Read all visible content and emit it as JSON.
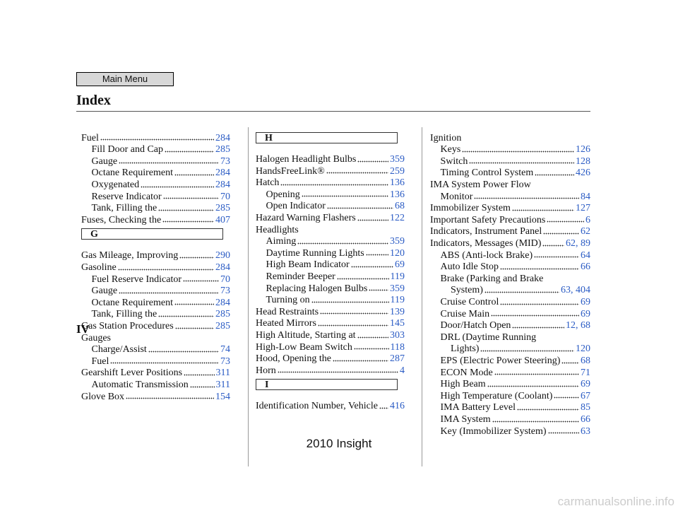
{
  "header": {
    "menu_button": "Main Menu",
    "title": "Index",
    "page_number": "IV"
  },
  "columns": [
    [
      {
        "term": "Fuel",
        "pages": "284",
        "subentries": [
          {
            "term": "Fill Door and Cap",
            "pages": "285"
          },
          {
            "term": "Gauge",
            "pages": "73"
          },
          {
            "term": "Octane Requirement",
            "pages": "284"
          },
          {
            "term": "Oxygenated",
            "pages": "284"
          },
          {
            "term": "Reserve Indicator",
            "pages": "70"
          },
          {
            "term": "Tank, Filling the",
            "pages": "285"
          }
        ]
      },
      {
        "term": "Fuses, Checking the",
        "pages": "407"
      },
      {
        "heading": "G"
      },
      {
        "term": "Gas Mileage, Improving",
        "pages": "290"
      },
      {
        "term": "Gasoline",
        "pages": "284",
        "subentries": [
          {
            "term": "Fuel Reserve Indicator",
            "pages": "70"
          },
          {
            "term": "Gauge",
            "pages": "73"
          },
          {
            "term": "Octane Requirement",
            "pages": "284"
          },
          {
            "term": "Tank, Filling the",
            "pages": "285"
          }
        ]
      },
      {
        "term": "Gas Station Procedures",
        "pages": "285"
      },
      {
        "term": "Gauges",
        "subentries": [
          {
            "term": "Charge/Assist",
            "pages": "74"
          },
          {
            "term": "Fuel",
            "pages": "73"
          }
        ]
      },
      {
        "term": "Gearshift Lever Positions",
        "pages": "311",
        "subentries": [
          {
            "term": "Automatic Transmission",
            "pages": "311"
          }
        ]
      },
      {
        "term": "Glove Box",
        "pages": "154"
      }
    ],
    [
      {
        "heading": "H"
      },
      {
        "term": "Halogen Headlight Bulbs",
        "pages": "359"
      },
      {
        "term": "HandsFreeLink®",
        "pages": "259"
      },
      {
        "term": "Hatch",
        "pages": "136",
        "subentries": [
          {
            "term": "Opening",
            "pages": "136"
          },
          {
            "term": "Open Indicator",
            "pages": "68"
          }
        ]
      },
      {
        "term": "Hazard Warning Flashers",
        "pages": "122"
      },
      {
        "term": "Headlights",
        "subentries": [
          {
            "term": "Aiming",
            "pages": "359"
          },
          {
            "term": "Daytime Running Lights",
            "pages": "120"
          },
          {
            "term": "High Beam Indicator",
            "pages": "69"
          },
          {
            "term": "Reminder Beeper",
            "pages": "119"
          },
          {
            "term": "Replacing Halogen Bulbs",
            "pages": "359"
          },
          {
            "term": "Turning on",
            "pages": "119"
          }
        ]
      },
      {
        "term": "Head Restraints",
        "pages": "139"
      },
      {
        "term": "Heated Mirrors",
        "pages": "145"
      },
      {
        "term": "High Altitude, Starting at",
        "pages": "303"
      },
      {
        "term": "High-Low Beam Switch",
        "pages": "118"
      },
      {
        "term": "Hood, Opening the",
        "pages": "287"
      },
      {
        "term": "Horn",
        "pages": "4"
      },
      {
        "heading": "I"
      },
      {
        "term": "Identification Number, Vehicle",
        "pages": "416"
      }
    ],
    [
      {
        "term": "Ignition",
        "subentries": [
          {
            "term": "Keys",
            "pages": "126"
          },
          {
            "term": "Switch",
            "pages": "128"
          },
          {
            "term": "Timing Control System",
            "pages": "426"
          }
        ]
      },
      {
        "term": "IMA System Power Flow",
        "term_cont": "Monitor",
        "pages": "84"
      },
      {
        "term": "Immobilizer System",
        "pages": "127"
      },
      {
        "term": "Important Safety Precautions",
        "pages": "6"
      },
      {
        "term": "Indicators, Instrument Panel",
        "pages": "62"
      },
      {
        "term": "Indicators, Messages (MID)",
        "pages": "62, 89",
        "subentries": [
          {
            "term": "ABS (Anti-lock Brake)",
            "pages": "64"
          },
          {
            "term": "Auto Idle Stop",
            "pages": "66"
          },
          {
            "term": "Brake (Parking and Brake",
            "term_cont": "System)",
            "pages": "63, 404"
          },
          {
            "term": "Cruise Control",
            "pages": "69"
          },
          {
            "term": "Cruise Main",
            "pages": "69"
          },
          {
            "term": "Door/Hatch Open",
            "pages": "12, 68"
          },
          {
            "term": "DRL (Daytime Running",
            "term_cont": "Lights)",
            "pages": "120"
          },
          {
            "term": "EPS (Electric Power Steering)",
            "pages": "68"
          },
          {
            "term": "ECON Mode",
            "pages": "71"
          },
          {
            "term": "High Beam",
            "pages": "69"
          },
          {
            "term": "High Temperature (Coolant)",
            "pages": "67"
          },
          {
            "term": "IMA Battery Level",
            "pages": "85"
          },
          {
            "term": "IMA System",
            "pages": "66"
          },
          {
            "term": "Key (Immobilizer System)",
            "pages": "63"
          }
        ]
      }
    ]
  ],
  "footer": {
    "model": "2010 Insight",
    "watermark": "carmanualsonline.info"
  }
}
